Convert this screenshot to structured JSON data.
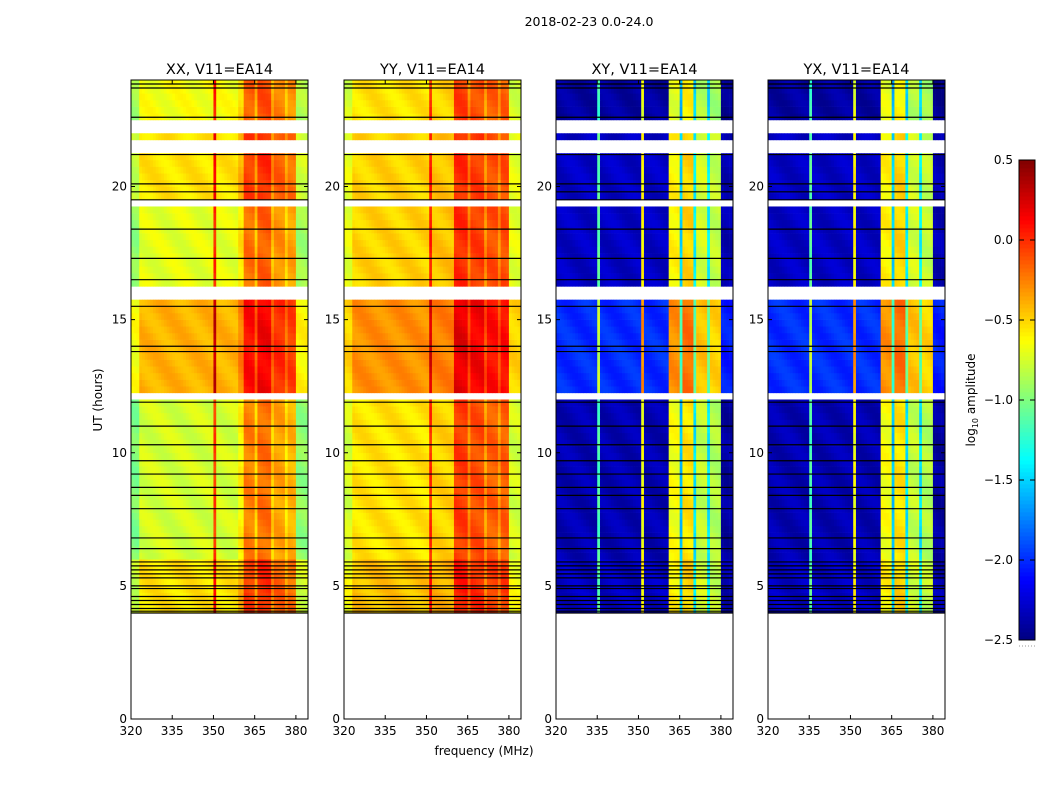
{
  "chart_data": {
    "type": "heatmap",
    "title": "2018-02-23 0.0-24.0",
    "xlabel": "frequency (MHz)",
    "ylabel": "UT (hours)",
    "xlim": [
      320,
      384.4
    ],
    "ylim": [
      0,
      24
    ],
    "xticks": [
      320,
      335,
      350,
      365,
      380
    ],
    "xtick_labels": [
      "320",
      "335",
      "350",
      "365",
      "380"
    ],
    "yticks": [
      0,
      5,
      10,
      15,
      20
    ],
    "ytick_labels": [
      "0",
      "5",
      "10",
      "15",
      "20"
    ],
    "data_time_range_hours": [
      4.0,
      24.0
    ],
    "time_resolution_hours": 0.25,
    "freq_resolution_mhz": 1,
    "colorbar": {
      "label_prefix": "log",
      "label_sub": "10",
      "label_suffix": " amplitude",
      "colormap": "jet",
      "vmin": -2.5,
      "vmax": 0.5,
      "ticks": [
        0.5,
        0.0,
        -0.5,
        -1.0,
        -1.5,
        -2.0,
        -2.5
      ],
      "tick_labels": [
        "0.5",
        "0.0",
        "−0.5",
        "−1.0",
        "−1.5",
        "−2.0",
        "−2.5"
      ]
    },
    "flagged_white_hours": [
      [
        21.9,
        22.4
      ],
      [
        21.55,
        21.65
      ],
      [
        21.35,
        21.45
      ],
      [
        19.3,
        19.4
      ],
      [
        16.1,
        16.25
      ],
      [
        15.85,
        15.95
      ],
      [
        12.05,
        12.15
      ],
      [
        7.4,
        7.45
      ],
      [
        5.15,
        5.2
      ]
    ],
    "flagged_black_lines_hours": [
      23.85,
      23.7,
      22.6,
      21.2,
      20.1,
      19.8,
      19.5,
      18.4,
      17.3,
      16.5,
      15.5,
      14.0,
      13.8,
      11.9,
      11.0,
      10.3,
      9.7,
      9.2,
      8.7,
      8.4,
      7.9,
      6.8,
      6.4,
      5.9,
      5.75,
      5.6,
      5.45,
      5.3,
      5.0,
      4.9,
      4.6,
      4.45,
      4.3,
      4.15,
      4.05,
      3.98
    ],
    "panels": [
      {
        "title": "XX, V11=EA14",
        "freq_profile": [
          {
            "from": 320,
            "to": 323,
            "value": -0.85
          },
          {
            "from": 323,
            "to": 350,
            "value": -0.6
          },
          {
            "from": 350,
            "to": 351,
            "value": 0.1
          },
          {
            "from": 351,
            "to": 359,
            "value": -0.6
          },
          {
            "from": 359,
            "to": 361,
            "value": -0.45
          },
          {
            "from": 361,
            "to": 365.5,
            "value": -0.1
          },
          {
            "from": 365.5,
            "to": 366.5,
            "value": -0.35
          },
          {
            "from": 366.5,
            "to": 371,
            "value": -0.05
          },
          {
            "from": 371,
            "to": 372,
            "value": -0.35
          },
          {
            "from": 372,
            "to": 376,
            "value": -0.2
          },
          {
            "from": 376,
            "to": 377,
            "value": -0.4
          },
          {
            "from": 377,
            "to": 380.5,
            "value": -0.25
          },
          {
            "from": 380.5,
            "to": 384.4,
            "value": -0.8
          }
        ],
        "time_offset": [
          {
            "from": 4,
            "to": 6,
            "value": 0.05
          },
          {
            "from": 6,
            "to": 12,
            "value": -0.15
          },
          {
            "from": 12,
            "to": 16.2,
            "value": 0.2
          },
          {
            "from": 16.2,
            "to": 19.3,
            "value": -0.1
          },
          {
            "from": 19.3,
            "to": 22,
            "value": 0.05
          },
          {
            "from": 22,
            "to": 24,
            "value": -0.05
          }
        ]
      },
      {
        "title": "YY, V11=EA14",
        "freq_profile": [
          {
            "from": 320,
            "to": 323,
            "value": -0.75
          },
          {
            "from": 323,
            "to": 351,
            "value": -0.55
          },
          {
            "from": 351,
            "to": 352,
            "value": 0.0
          },
          {
            "from": 352,
            "to": 360,
            "value": -0.5
          },
          {
            "from": 360,
            "to": 365.5,
            "value": -0.05
          },
          {
            "from": 365.5,
            "to": 366.5,
            "value": -0.3
          },
          {
            "from": 366.5,
            "to": 371,
            "value": -0.1
          },
          {
            "from": 371,
            "to": 372,
            "value": -0.35
          },
          {
            "from": 372,
            "to": 376,
            "value": -0.15
          },
          {
            "from": 376,
            "to": 377,
            "value": -0.35
          },
          {
            "from": 377,
            "to": 380.5,
            "value": -0.15
          },
          {
            "from": 380.5,
            "to": 384.4,
            "value": -0.75
          }
        ],
        "time_offset": [
          {
            "from": 4,
            "to": 6,
            "value": 0.1
          },
          {
            "from": 6,
            "to": 12,
            "value": 0.0
          },
          {
            "from": 12,
            "to": 16.2,
            "value": 0.25
          },
          {
            "from": 16.2,
            "to": 22,
            "value": 0.05
          },
          {
            "from": 22,
            "to": 24,
            "value": 0.0
          }
        ]
      },
      {
        "title": "XY, V11=EA14",
        "freq_profile": [
          {
            "from": 320,
            "to": 335,
            "value": -2.3
          },
          {
            "from": 335,
            "to": 336,
            "value": -1.1
          },
          {
            "from": 336,
            "to": 351,
            "value": -2.3
          },
          {
            "from": 351,
            "to": 352,
            "value": -0.6
          },
          {
            "from": 352,
            "to": 361,
            "value": -2.3
          },
          {
            "from": 361,
            "to": 365,
            "value": -0.6
          },
          {
            "from": 365,
            "to": 366,
            "value": -1.5
          },
          {
            "from": 366,
            "to": 370,
            "value": -0.5
          },
          {
            "from": 370,
            "to": 371,
            "value": -1.4
          },
          {
            "from": 371,
            "to": 375,
            "value": -0.75
          },
          {
            "from": 375,
            "to": 376,
            "value": -1.4
          },
          {
            "from": 376,
            "to": 380,
            "value": -0.8
          },
          {
            "from": 380,
            "to": 384.4,
            "value": -2.35
          }
        ],
        "time_offset": [
          {
            "from": 4,
            "to": 6,
            "value": 0.0
          },
          {
            "from": 6,
            "to": 12,
            "value": -0.05
          },
          {
            "from": 12,
            "to": 16.2,
            "value": 0.3
          },
          {
            "from": 16.2,
            "to": 22,
            "value": 0.0
          },
          {
            "from": 22,
            "to": 24,
            "value": -0.1
          }
        ]
      },
      {
        "title": "YX, V11=EA14",
        "freq_profile": [
          {
            "from": 320,
            "to": 335,
            "value": -2.3
          },
          {
            "from": 335,
            "to": 336,
            "value": -1.1
          },
          {
            "from": 336,
            "to": 351,
            "value": -2.3
          },
          {
            "from": 351,
            "to": 352,
            "value": -0.6
          },
          {
            "from": 352,
            "to": 361,
            "value": -2.3
          },
          {
            "from": 361,
            "to": 365,
            "value": -0.6
          },
          {
            "from": 365,
            "to": 366,
            "value": -1.5
          },
          {
            "from": 366,
            "to": 370,
            "value": -0.5
          },
          {
            "from": 370,
            "to": 371,
            "value": -1.4
          },
          {
            "from": 371,
            "to": 375,
            "value": -0.75
          },
          {
            "from": 375,
            "to": 376,
            "value": -1.4
          },
          {
            "from": 376,
            "to": 380,
            "value": -0.8
          },
          {
            "from": 380,
            "to": 384.4,
            "value": -2.35
          }
        ],
        "time_offset": [
          {
            "from": 4,
            "to": 6,
            "value": 0.0
          },
          {
            "from": 6,
            "to": 12,
            "value": -0.05
          },
          {
            "from": 12,
            "to": 16.2,
            "value": 0.3
          },
          {
            "from": 16.2,
            "to": 22,
            "value": 0.0
          },
          {
            "from": 22,
            "to": 24,
            "value": -0.1
          }
        ]
      }
    ]
  }
}
